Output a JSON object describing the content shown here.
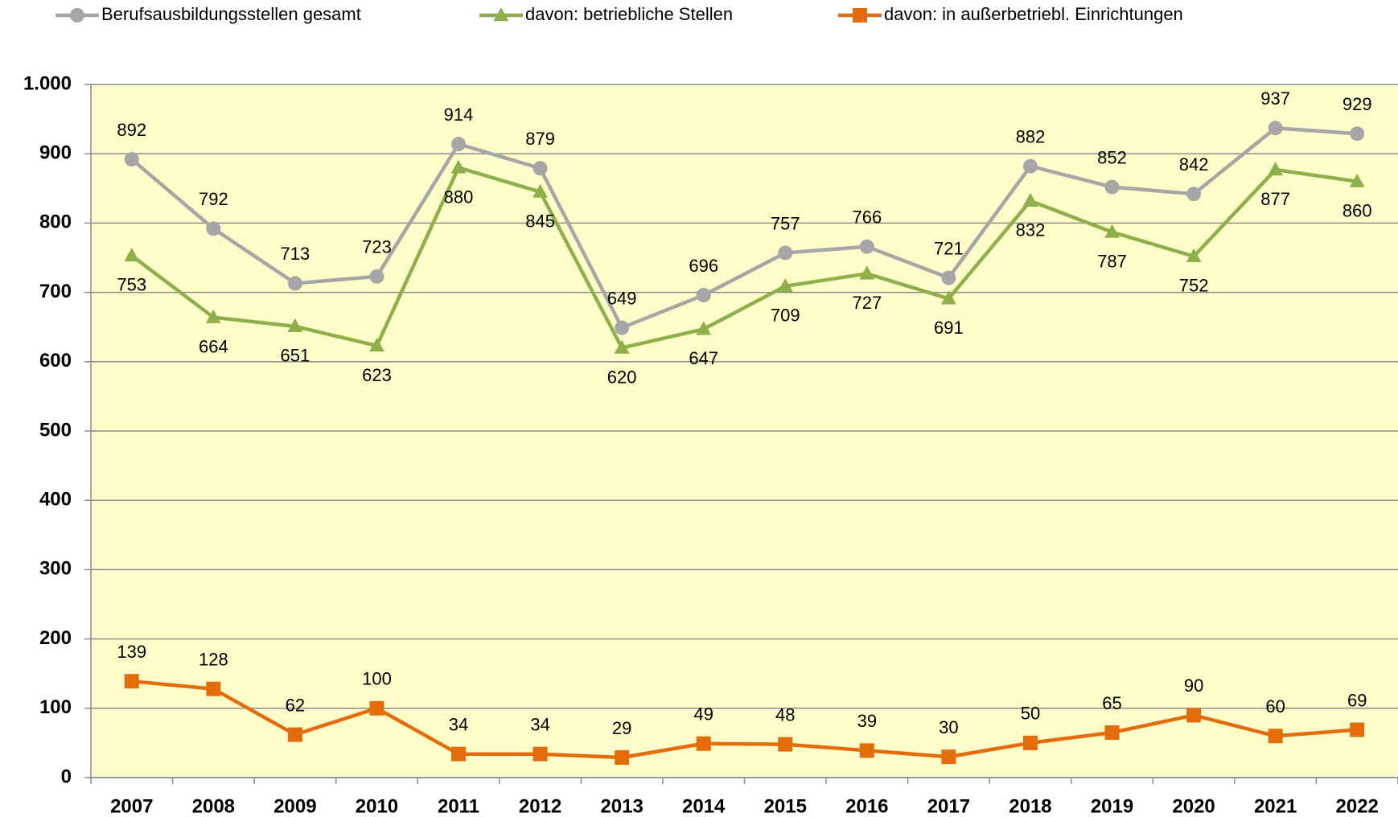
{
  "chart_data": {
    "type": "line",
    "categories": [
      "2007",
      "2008",
      "2009",
      "2010",
      "2011",
      "2012",
      "2013",
      "2014",
      "2015",
      "2016",
      "2017",
      "2018",
      "2019",
      "2020",
      "2021",
      "2022"
    ],
    "series": [
      {
        "name": "Berufsausbildungsstellen gesamt",
        "color": "#a6a6a6",
        "marker": "circle",
        "values": [
          892,
          792,
          713,
          723,
          914,
          879,
          649,
          696,
          757,
          766,
          721,
          882,
          852,
          842,
          937,
          929
        ]
      },
      {
        "name": "davon: betriebliche Stellen",
        "color": "#8db04a",
        "marker": "triangle",
        "values": [
          753,
          664,
          651,
          623,
          880,
          845,
          620,
          647,
          709,
          727,
          691,
          832,
          787,
          752,
          877,
          860
        ]
      },
      {
        "name": "davon: in außerbetriebl. Einrichtungen",
        "color": "#e46c0a",
        "marker": "square",
        "values": [
          139,
          128,
          62,
          100,
          34,
          34,
          29,
          49,
          48,
          39,
          30,
          50,
          65,
          90,
          60,
          69
        ]
      }
    ],
    "ylim": [
      0,
      1000
    ],
    "yticks": [
      0,
      100,
      200,
      300,
      400,
      500,
      600,
      700,
      800,
      900,
      {
        "value": 1000,
        "label": "1.000"
      }
    ],
    "grid": true,
    "background": "#fefdc9"
  }
}
